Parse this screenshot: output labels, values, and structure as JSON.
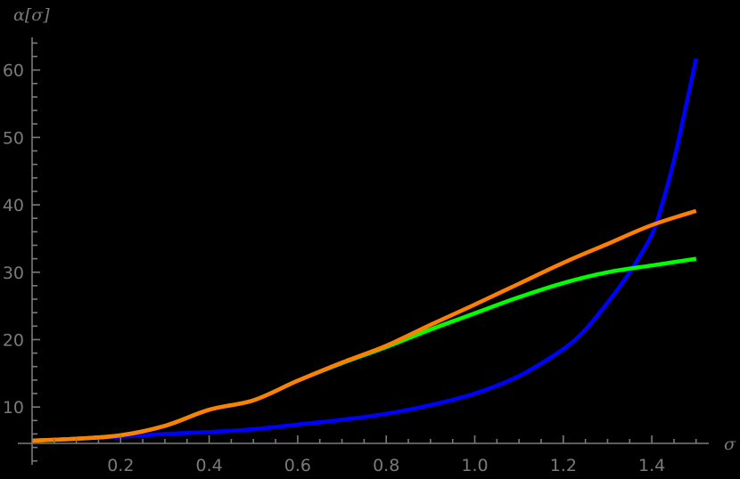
{
  "chart_data": {
    "type": "line",
    "title": "",
    "xlabel": "σ",
    "ylabel": "α[σ]",
    "xlim": [
      0,
      1.53
    ],
    "ylim": [
      5,
      64
    ],
    "grid": false,
    "legend": null,
    "background": "#000000",
    "axis_color": "#7a7a7a",
    "x_ticks": [
      0.2,
      0.4,
      0.6,
      0.8,
      1.0,
      1.2,
      1.4
    ],
    "x_tick_labels": [
      "0.2",
      "0.4",
      "0.6",
      "0.8",
      "1.0",
      "1.2",
      "1.4"
    ],
    "y_ticks": [
      10,
      20,
      30,
      40,
      50,
      60
    ],
    "y_tick_labels": [
      "10",
      "20",
      "30",
      "40",
      "50",
      "60"
    ],
    "series": [
      {
        "name": "blue",
        "color": "#0000ff",
        "x": [
          0.0,
          0.1,
          0.2,
          0.3,
          0.4,
          0.5,
          0.6,
          0.7,
          0.8,
          0.9,
          1.0,
          1.1,
          1.2,
          1.25,
          1.3,
          1.35,
          1.4,
          1.425,
          1.45,
          1.475,
          1.5
        ],
        "values": [
          5.0,
          5.3,
          5.6,
          6.0,
          6.3,
          6.7,
          7.4,
          8.1,
          9.0,
          10.3,
          12.0,
          14.6,
          18.6,
          21.5,
          25.5,
          30.0,
          35.6,
          40.5,
          46.6,
          54.0,
          61.7
        ]
      },
      {
        "name": "green",
        "color": "#00ff00",
        "x": [
          0.0,
          0.1,
          0.2,
          0.3,
          0.4,
          0.5,
          0.6,
          0.7,
          0.8,
          0.9,
          1.0,
          1.1,
          1.2,
          1.3,
          1.4,
          1.5
        ],
        "values": [
          5.0,
          5.3,
          5.8,
          7.2,
          9.6,
          11.0,
          13.9,
          16.5,
          18.9,
          21.5,
          23.9,
          26.3,
          28.4,
          30.0,
          31.0,
          32.0
        ]
      },
      {
        "name": "orange",
        "color": "#ff8000",
        "x": [
          0.0,
          0.1,
          0.2,
          0.3,
          0.4,
          0.5,
          0.6,
          0.7,
          0.8,
          0.9,
          1.0,
          1.1,
          1.2,
          1.3,
          1.4,
          1.5
        ],
        "values": [
          5.0,
          5.3,
          5.8,
          7.2,
          9.6,
          11.0,
          13.9,
          16.6,
          19.1,
          22.2,
          25.2,
          28.3,
          31.4,
          34.2,
          37.0,
          39.1
        ]
      }
    ]
  }
}
